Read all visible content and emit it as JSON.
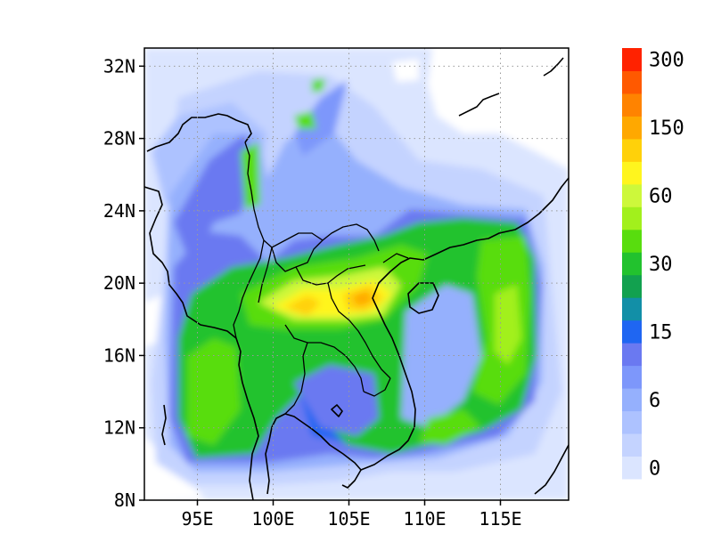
{
  "map": {
    "lon_range": [
      91.5,
      119.5
    ],
    "lat_range": [
      8,
      33
    ],
    "lon_ticks": [
      {
        "value": 95,
        "label": "95E"
      },
      {
        "value": 100,
        "label": "100E"
      },
      {
        "value": 105,
        "label": "105E"
      },
      {
        "value": 110,
        "label": "110E"
      },
      {
        "value": 115,
        "label": "115E"
      }
    ],
    "lat_ticks": [
      {
        "value": 8,
        "label": "8N"
      },
      {
        "value": 12,
        "label": "12N"
      },
      {
        "value": 16,
        "label": "16N"
      },
      {
        "value": 20,
        "label": "20N"
      },
      {
        "value": 24,
        "label": "24N"
      },
      {
        "value": 28,
        "label": "28N"
      },
      {
        "value": 32,
        "label": "32N"
      }
    ],
    "grid": true
  },
  "colorbar": {
    "colors": [
      "#dbe5ff",
      "#c4d3ff",
      "#adc2ff",
      "#95b0fd",
      "#7d97fb",
      "#6a79f1",
      "#1f66f2",
      "#128fa7",
      "#12a14f",
      "#22c22e",
      "#58dd0e",
      "#a2f01c",
      "#cdf83b",
      "#fff51e",
      "#ffd10a",
      "#ffa800",
      "#ff8300",
      "#ff5900",
      "#ff2200"
    ],
    "labels": [
      {
        "index": 0,
        "text": "0"
      },
      {
        "index": 3,
        "text": "6"
      },
      {
        "index": 6,
        "text": "15"
      },
      {
        "index": 9,
        "text": "30"
      },
      {
        "index": 12,
        "text": "60"
      },
      {
        "index": 15,
        "text": "150"
      },
      {
        "index": 18,
        "text": "300"
      }
    ]
  }
}
